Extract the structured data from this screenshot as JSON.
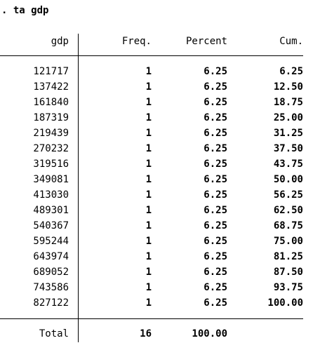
{
  "command": ". ta gdp",
  "table": {
    "headers": {
      "var": "gdp",
      "freq": "Freq.",
      "percent": "Percent",
      "cum": "Cum."
    },
    "rows": [
      {
        "value": "121717",
        "freq": "1",
        "percent": "6.25",
        "cum": "6.25"
      },
      {
        "value": "137422",
        "freq": "1",
        "percent": "6.25",
        "cum": "12.50"
      },
      {
        "value": "161840",
        "freq": "1",
        "percent": "6.25",
        "cum": "18.75"
      },
      {
        "value": "187319",
        "freq": "1",
        "percent": "6.25",
        "cum": "25.00"
      },
      {
        "value": "219439",
        "freq": "1",
        "percent": "6.25",
        "cum": "31.25"
      },
      {
        "value": "270232",
        "freq": "1",
        "percent": "6.25",
        "cum": "37.50"
      },
      {
        "value": "319516",
        "freq": "1",
        "percent": "6.25",
        "cum": "43.75"
      },
      {
        "value": "349081",
        "freq": "1",
        "percent": "6.25",
        "cum": "50.00"
      },
      {
        "value": "413030",
        "freq": "1",
        "percent": "6.25",
        "cum": "56.25"
      },
      {
        "value": "489301",
        "freq": "1",
        "percent": "6.25",
        "cum": "62.50"
      },
      {
        "value": "540367",
        "freq": "1",
        "percent": "6.25",
        "cum": "68.75"
      },
      {
        "value": "595244",
        "freq": "1",
        "percent": "6.25",
        "cum": "75.00"
      },
      {
        "value": "643974",
        "freq": "1",
        "percent": "6.25",
        "cum": "81.25"
      },
      {
        "value": "689052",
        "freq": "1",
        "percent": "6.25",
        "cum": "87.50"
      },
      {
        "value": "743586",
        "freq": "1",
        "percent": "6.25",
        "cum": "93.75"
      },
      {
        "value": "827122",
        "freq": "1",
        "percent": "6.25",
        "cum": "100.00"
      }
    ],
    "total": {
      "label": "Total",
      "freq": "16",
      "percent": "100.00"
    }
  }
}
